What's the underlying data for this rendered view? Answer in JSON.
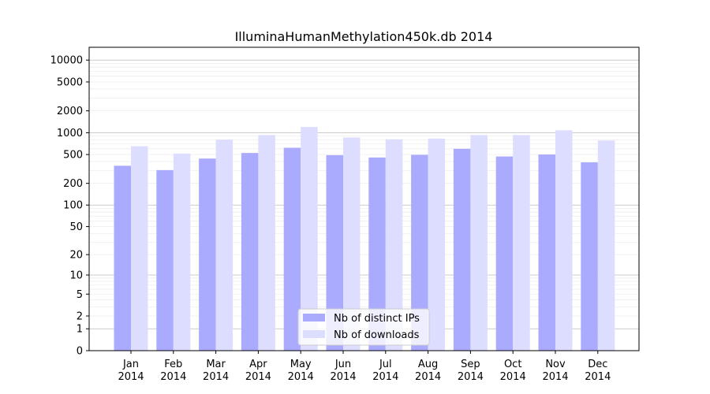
{
  "chart_data": {
    "type": "bar",
    "title": "IlluminaHumanMethylation450k.db 2014",
    "xlabel": "",
    "ylabel": "",
    "y_scale": "log1p",
    "ylim": [
      0,
      15000
    ],
    "y_ticks": [
      "0",
      "1",
      "2",
      "5",
      "10",
      "20",
      "50",
      "100",
      "200",
      "500",
      "1000",
      "2000",
      "5000",
      "10000"
    ],
    "grid": "horizontal",
    "legend_position": "bottom-center",
    "categories": [
      [
        "Jan",
        "2014"
      ],
      [
        "Feb",
        "2014"
      ],
      [
        "Mar",
        "2014"
      ],
      [
        "Apr",
        "2014"
      ],
      [
        "May",
        "2014"
      ],
      [
        "Jun",
        "2014"
      ],
      [
        "Jul",
        "2014"
      ],
      [
        "Aug",
        "2014"
      ],
      [
        "Sep",
        "2014"
      ],
      [
        "Oct",
        "2014"
      ],
      [
        "Nov",
        "2014"
      ],
      [
        "Dec",
        "2014"
      ]
    ],
    "series": [
      {
        "name": "Nb of distinct IPs",
        "color": "#aaaaff",
        "values": [
          350,
          305,
          440,
          525,
          620,
          490,
          455,
          495,
          600,
          470,
          500,
          390
        ]
      },
      {
        "name": "Nb of downloads",
        "color": "#ddddff",
        "values": [
          650,
          515,
          800,
          930,
          1200,
          860,
          810,
          830,
          930,
          930,
          1080,
          780
        ]
      }
    ]
  }
}
